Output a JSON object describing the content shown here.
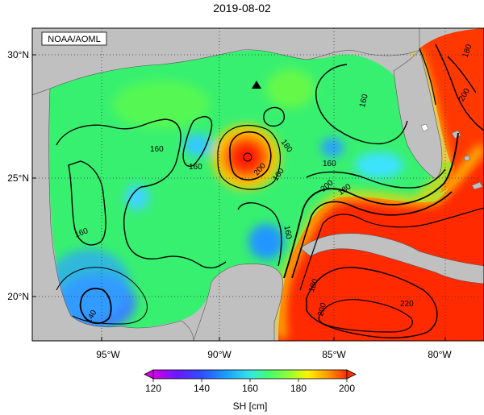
{
  "title": "2019-08-02",
  "credit": "NOAA/AOML",
  "lat_labels": [
    "30°N",
    "25°N",
    "20°N"
  ],
  "lon_labels": [
    "95°W",
    "90°W",
    "85°W",
    "80°W"
  ],
  "contour_labels": [
    "180",
    "200",
    "160",
    "160",
    "160",
    "160",
    "200",
    "180",
    "160",
    "160",
    "180",
    "200",
    "160",
    "180",
    "200",
    "220",
    "140"
  ],
  "colorbar": {
    "label": "SH [cm]",
    "ticks": [
      "120",
      "140",
      "160",
      "180",
      "200"
    ],
    "colors": [
      "#d300e6",
      "#3f2cff",
      "#1aa0ff",
      "#35e6ff",
      "#44ff6a",
      "#a6ff2a",
      "#fff200",
      "#ff9a00",
      "#ff2d00"
    ]
  },
  "marker": "triangle-marker",
  "colors": {
    "land": "#c0c0c0",
    "ocean_background": "#3cff6e",
    "warm_core": "#ff2a00",
    "cool_core": "#2aa5ff"
  }
}
